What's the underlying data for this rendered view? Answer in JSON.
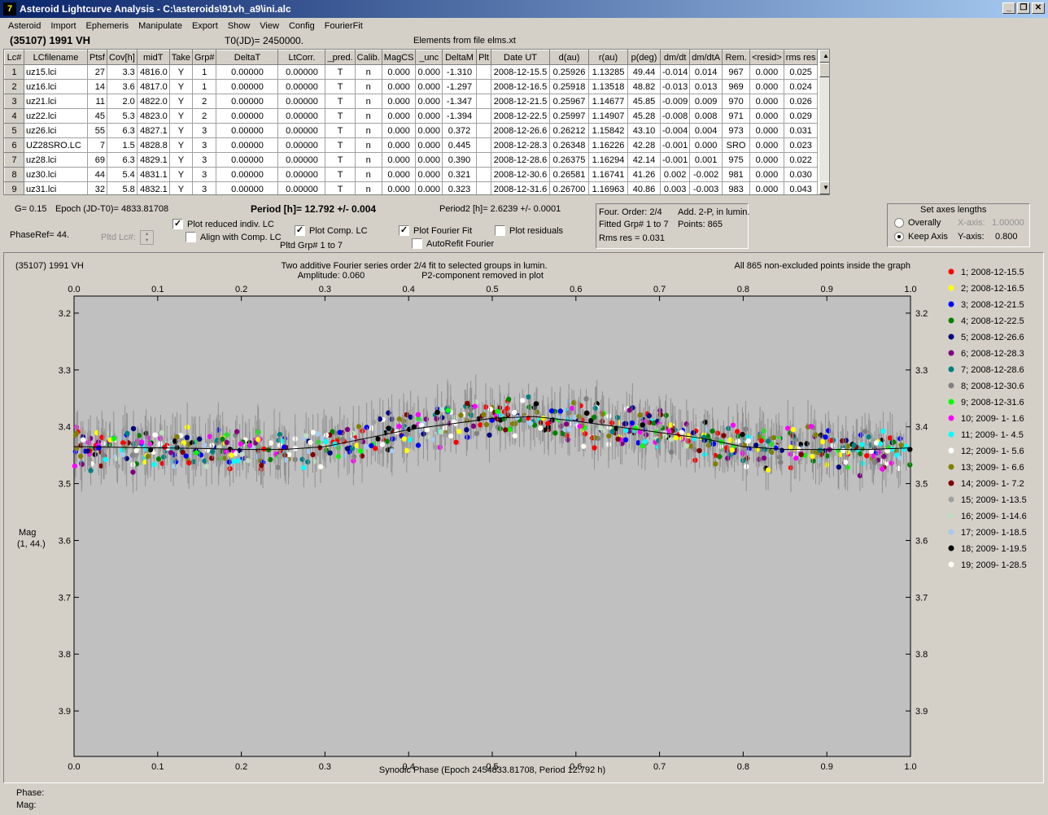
{
  "window": {
    "icon": "lightcurve-app-icon",
    "title": "Asteroid Lightcurve Analysis - C:\\asteroids\\91vh_a9\\ini.alc",
    "buttons": [
      "minimize-button",
      "restore-button",
      "close-button"
    ]
  },
  "menu": [
    "Asteroid",
    "Import",
    "Ephemeris",
    "Manipulate",
    "Export",
    "Show",
    "View",
    "Config",
    "FourierFit"
  ],
  "header": {
    "object": "(35107) 1991 VH",
    "t0": "T0(JD)= 2450000.",
    "elements": "Elements from file elms.xt"
  },
  "table": {
    "columns": [
      "Lc#",
      "LCfilename",
      "Ptsf",
      "Cov[h]",
      "midT",
      "Take",
      "Grp#",
      "DeltaT",
      "LtCorr.",
      "_pred.",
      "Calib.",
      "MagCS",
      "_unc",
      "DeltaM",
      "Plt",
      "Date UT",
      "d(au)",
      "r(au)",
      "p(deg)",
      "dm/dt",
      "dm/dtA",
      "Rem.",
      "<resid>",
      "rms res"
    ],
    "rows": [
      [
        "1",
        "uz15.lci",
        "27",
        "3.3",
        "4816.0",
        "Y",
        "1",
        "0.00000",
        "0.00000",
        "T",
        "n",
        "0.000",
        "0.000",
        "-1.310",
        "",
        "2008-12-15.5",
        "0.25926",
        "1.13285",
        "49.44",
        "-0.014",
        "0.014",
        "967",
        "0.000",
        "0.025"
      ],
      [
        "2",
        "uz16.lci",
        "14",
        "3.6",
        "4817.0",
        "Y",
        "1",
        "0.00000",
        "0.00000",
        "T",
        "n",
        "0.000",
        "0.000",
        "-1.297",
        "",
        "2008-12-16.5",
        "0.25918",
        "1.13518",
        "48.82",
        "-0.013",
        "0.013",
        "969",
        "0.000",
        "0.024"
      ],
      [
        "3",
        "uz21.lci",
        "11",
        "2.0",
        "4822.0",
        "Y",
        "2",
        "0.00000",
        "0.00000",
        "T",
        "n",
        "0.000",
        "0.000",
        "-1.347",
        "",
        "2008-12-21.5",
        "0.25967",
        "1.14677",
        "45.85",
        "-0.009",
        "0.009",
        "970",
        "0.000",
        "0.026"
      ],
      [
        "4",
        "uz22.lci",
        "45",
        "5.3",
        "4823.0",
        "Y",
        "2",
        "0.00000",
        "0.00000",
        "T",
        "n",
        "0.000",
        "0.000",
        "-1.394",
        "",
        "2008-12-22.5",
        "0.25997",
        "1.14907",
        "45.28",
        "-0.008",
        "0.008",
        "971",
        "0.000",
        "0.029"
      ],
      [
        "5",
        "uz26.lci",
        "55",
        "6.3",
        "4827.1",
        "Y",
        "3",
        "0.00000",
        "0.00000",
        "T",
        "n",
        "0.000",
        "0.000",
        "0.372",
        "",
        "2008-12-26.6",
        "0.26212",
        "1.15842",
        "43.10",
        "-0.004",
        "0.004",
        "973",
        "0.000",
        "0.031"
      ],
      [
        "6",
        "UZ28SRO.LC",
        "7",
        "1.5",
        "4828.8",
        "Y",
        "3",
        "0.00000",
        "0.00000",
        "T",
        "n",
        "0.000",
        "0.000",
        "0.445",
        "",
        "2008-12-28.3",
        "0.26348",
        "1.16226",
        "42.28",
        "-0.001",
        "0.000",
        "SRO",
        "0.000",
        "0.023"
      ],
      [
        "7",
        "uz28.lci",
        "69",
        "6.3",
        "4829.1",
        "Y",
        "3",
        "0.00000",
        "0.00000",
        "T",
        "n",
        "0.000",
        "0.000",
        "0.390",
        "",
        "2008-12-28.6",
        "0.26375",
        "1.16294",
        "42.14",
        "-0.001",
        "0.001",
        "975",
        "0.000",
        "0.022"
      ],
      [
        "8",
        "uz30.lci",
        "44",
        "5.4",
        "4831.1",
        "Y",
        "3",
        "0.00000",
        "0.00000",
        "T",
        "n",
        "0.000",
        "0.000",
        "0.321",
        "",
        "2008-12-30.6",
        "0.26581",
        "1.16741",
        "41.26",
        "0.002",
        "-0.002",
        "981",
        "0.000",
        "0.030"
      ],
      [
        "9",
        "uz31.lci",
        "32",
        "5.8",
        "4832.1",
        "Y",
        "3",
        "0.00000",
        "0.00000",
        "T",
        "n",
        "0.000",
        "0.000",
        "0.323",
        "",
        "2008-12-31.6",
        "0.26700",
        "1.16963",
        "40.86",
        "0.003",
        "-0.003",
        "983",
        "0.000",
        "0.043"
      ]
    ]
  },
  "controls": {
    "g": "G= 0.15",
    "epoch": "Epoch (JD-T0)= 4833.81708",
    "period": "Period [h]= 12.792 +/- 0.004",
    "period2": "Period2 [h]= 2.6239 +/- 0.0001",
    "phaseref": "PhaseRef= 44.",
    "pltd_lc": "Pltd Lc#:",
    "pltd_grp": "Pltd Grp#  1   to   7",
    "cb_reduced": "Plot reduced indiv. LC",
    "cb_align": "Align with Comp. LC",
    "cb_comp": "Plot Comp. LC",
    "cb_fourier": "Plot Fourier Fit",
    "cb_autorefit": "AutoRefit Fourier",
    "cb_resid": "Plot residuals",
    "fourier_order": "Four. Order:  2/4",
    "fourier_add": "Add. 2-P, in lumin.",
    "fitted_grp": "Fitted Grp# 1 to 7",
    "points": "Points: 865",
    "rms": "Rms res     = 0.031",
    "axes_title": "Set axes lengths",
    "overally": "Overally",
    "keep_axis": "Keep Axis",
    "xaxis_label": "X-axis:",
    "xaxis_value": "1.00000",
    "yaxis_label": "Y-axis:",
    "yaxis_value": "0.800"
  },
  "plot": {
    "object": "(35107) 1991 VH",
    "desc1": "Two additive Fourier series order 2/4 fit to selected groups in lumin.",
    "desc2": "Amplitude: 0.060",
    "desc3": "P2-component removed in plot",
    "right_note": "All 865 non-excluded points inside the graph",
    "ylabel1": "Mag",
    "ylabel2": "(1, 44.)",
    "xlabel": "Synodic Phase (Epoch 2454833.81708, Period 12.792 h)"
  },
  "chart_data": {
    "type": "scatter",
    "x_range": [
      0.0,
      1.0
    ],
    "y_range_inverted": [
      3.17,
      3.98
    ],
    "x_ticks": [
      "0.0",
      "0.1",
      "0.2",
      "0.3",
      "0.4",
      "0.5",
      "0.6",
      "0.7",
      "0.8",
      "0.9",
      "1.0"
    ],
    "y_ticks": [
      "3.2",
      "3.3",
      "3.4",
      "3.5",
      "3.6",
      "3.7",
      "3.8",
      "3.9"
    ],
    "fourier_fit": [
      [
        0.0,
        3.435
      ],
      [
        0.05,
        3.436
      ],
      [
        0.1,
        3.437
      ],
      [
        0.15,
        3.438
      ],
      [
        0.2,
        3.44
      ],
      [
        0.25,
        3.44
      ],
      [
        0.3,
        3.435
      ],
      [
        0.35,
        3.42
      ],
      [
        0.4,
        3.405
      ],
      [
        0.45,
        3.395
      ],
      [
        0.5,
        3.385
      ],
      [
        0.55,
        3.382
      ],
      [
        0.6,
        3.39
      ],
      [
        0.65,
        3.4
      ],
      [
        0.7,
        3.41
      ],
      [
        0.75,
        3.42
      ],
      [
        0.8,
        3.435
      ],
      [
        0.85,
        3.44
      ],
      [
        0.9,
        3.44
      ],
      [
        0.95,
        3.44
      ],
      [
        1.0,
        3.437
      ]
    ],
    "legend": [
      {
        "label": "1; 2008-12-15.5",
        "color": "#ff0000"
      },
      {
        "label": "2; 2008-12-16.5",
        "color": "#ffff00"
      },
      {
        "label": "3; 2008-12-21.5",
        "color": "#0000ff"
      },
      {
        "label": "4; 2008-12-22.5",
        "color": "#008000"
      },
      {
        "label": "5; 2008-12-26.6",
        "color": "#000080"
      },
      {
        "label": "6; 2008-12-28.3",
        "color": "#800080"
      },
      {
        "label": "7; 2008-12-28.6",
        "color": "#008080"
      },
      {
        "label": "8; 2008-12-30.6",
        "color": "#808080"
      },
      {
        "label": "9; 2008-12-31.6",
        "color": "#00ff00"
      },
      {
        "label": "10; 2009- 1- 1.6",
        "color": "#ff00ff"
      },
      {
        "label": "11; 2009- 1- 4.5",
        "color": "#00ffff"
      },
      {
        "label": "12; 2009- 1- 5.6",
        "color": "#ffffff"
      },
      {
        "label": "13; 2009- 1- 6.6",
        "color": "#808000"
      },
      {
        "label": "14; 2009- 1- 7.2",
        "color": "#800000"
      },
      {
        "label": "15; 2009- 1-13.5",
        "color": "#a0a0a0"
      },
      {
        "label": "16; 2009- 1-14.6",
        "color": "#c0dcc0"
      },
      {
        "label": "17; 2009- 1-18.5",
        "color": "#a6caf0"
      },
      {
        "label": "18; 2009- 1-19.5",
        "color": "#000000"
      },
      {
        "label": "19; 2009- 1-28.5",
        "color": "#fffbf0"
      }
    ],
    "points_total": 865
  },
  "status": {
    "phase": "Phase:",
    "mag": "Mag:"
  }
}
